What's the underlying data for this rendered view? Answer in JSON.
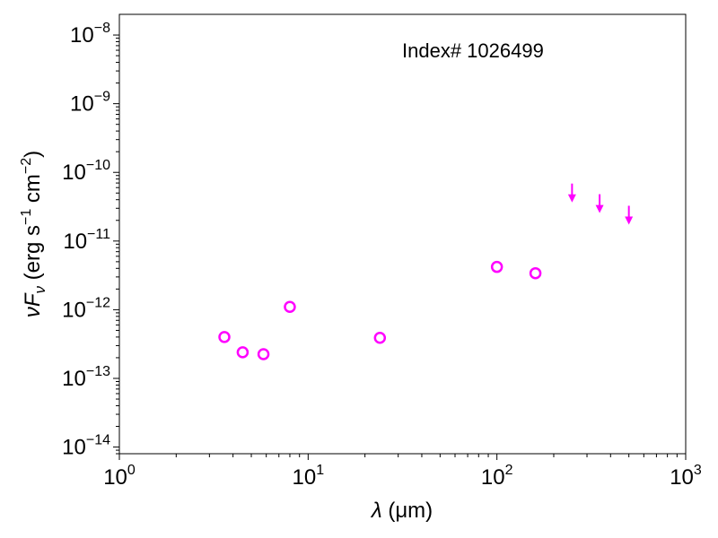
{
  "chart_data": {
    "type": "scatter",
    "annotation": "Index# 1026499",
    "xlabel": {
      "symbol": "λ",
      "units": " (μm)"
    },
    "ylabel": {
      "symbol": "νF",
      "subscript": "ν",
      "units": " (erg s",
      "sup1": "−1",
      "mid": " cm",
      "sup2": "−2",
      "end": ")"
    },
    "xscale": "log",
    "yscale": "log",
    "xlim": [
      1,
      1000
    ],
    "ylim": [
      8e-15,
      2e-08
    ],
    "x_ticks": [
      {
        "value": 1,
        "base": "10",
        "exp": "0"
      },
      {
        "value": 10,
        "base": "10",
        "exp": "1"
      },
      {
        "value": 100,
        "base": "10",
        "exp": "2"
      },
      {
        "value": 1000,
        "base": "10",
        "exp": "3"
      }
    ],
    "y_ticks": [
      {
        "value": 1e-14,
        "base": "10",
        "exp": "−14"
      },
      {
        "value": 1e-13,
        "base": "10",
        "exp": "−13"
      },
      {
        "value": 1e-12,
        "base": "10",
        "exp": "−12"
      },
      {
        "value": 1e-11,
        "base": "10",
        "exp": "−11"
      },
      {
        "value": 1e-10,
        "base": "10",
        "exp": "−10"
      },
      {
        "value": 1e-09,
        "base": "10",
        "exp": "−9"
      },
      {
        "value": 1e-08,
        "base": "10",
        "exp": "−8"
      }
    ],
    "grid": false,
    "series": [
      {
        "marker": "open-circle",
        "color": "#ff00ff",
        "points": [
          {
            "x": 3.6,
            "y": 4e-13
          },
          {
            "x": 4.5,
            "y": 2.4e-13
          },
          {
            "x": 5.8,
            "y": 2.25e-13
          },
          {
            "x": 8.0,
            "y": 1.1e-12
          },
          {
            "x": 24,
            "y": 3.9e-13
          },
          {
            "x": 100,
            "y": 4.2e-12
          },
          {
            "x": 160,
            "y": 3.4e-12
          }
        ]
      },
      {
        "marker": "upper-limit-arrow",
        "color": "#ff00ff",
        "points": [
          {
            "x": 250,
            "y": 4e-11
          },
          {
            "x": 350,
            "y": 2.8e-11
          },
          {
            "x": 500,
            "y": 1.9e-11
          }
        ]
      }
    ]
  }
}
